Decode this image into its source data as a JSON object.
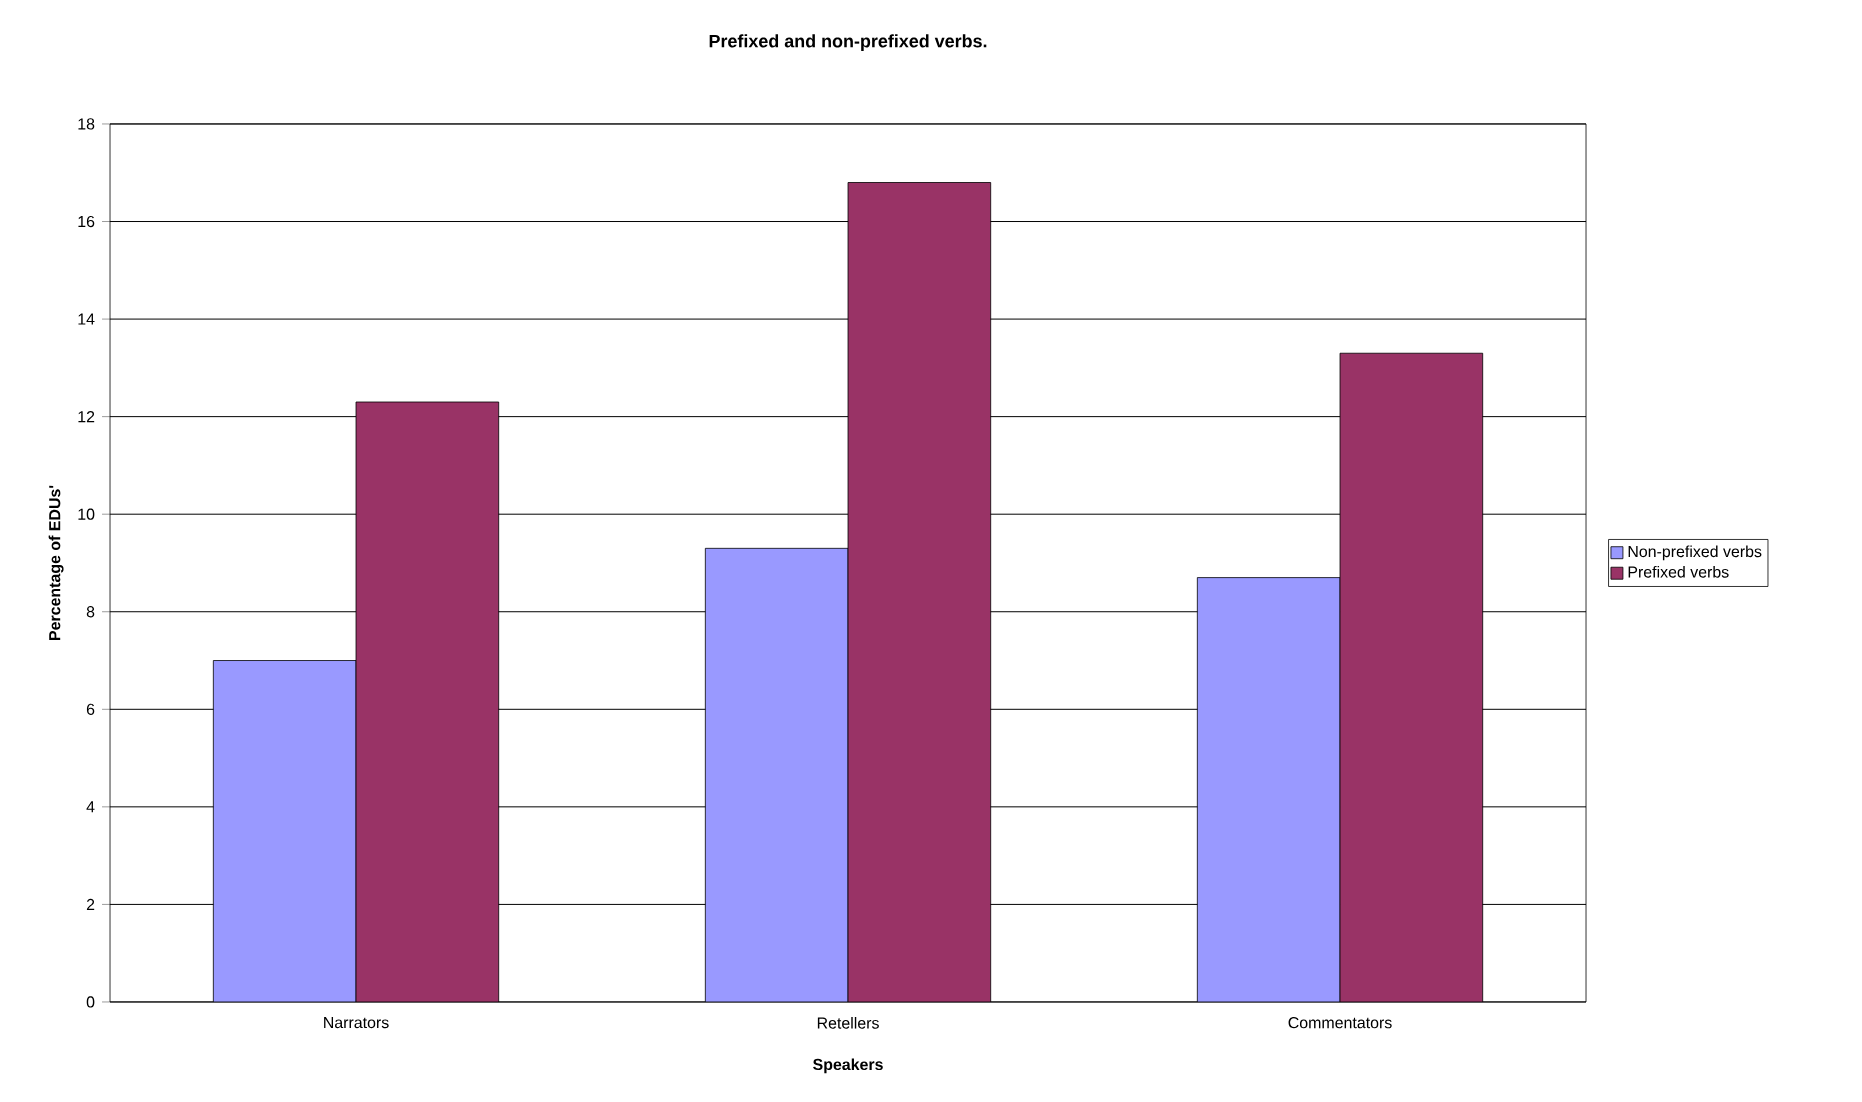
{
  "chart_data": {
    "type": "bar",
    "title": "Prefixed and non-prefixed verbs.",
    "xlabel": "Speakers",
    "ylabel": "Percentage of EDUs'",
    "categories": [
      "Narrators",
      "Retellers",
      "Commentators"
    ],
    "series": [
      {
        "name": "Non-prefixed verbs",
        "color": "#9999ff",
        "values": [
          7.0,
          9.3,
          8.7
        ]
      },
      {
        "name": "Prefixed verbs",
        "color": "#993366",
        "values": [
          12.3,
          16.8,
          13.3
        ]
      }
    ],
    "ylim": [
      0,
      18
    ],
    "yticks": [
      0,
      2,
      4,
      6,
      8,
      10,
      12,
      14,
      16,
      18
    ],
    "grid": "y",
    "legend": "right"
  }
}
